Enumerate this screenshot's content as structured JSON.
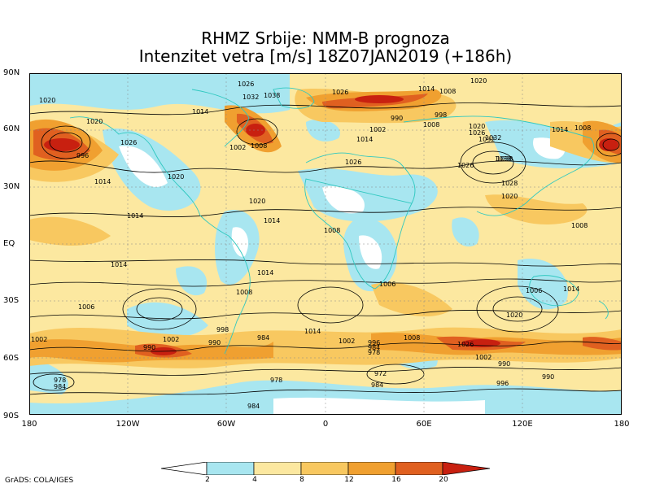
{
  "title_line1": "RHMZ Srbije: NMM-B prognoza",
  "title_line2": "Intenzitet vetra [m/s] 18Z07JAN2019 (+186h)",
  "lat_labels": [
    "90N",
    "60N",
    "30N",
    "EQ",
    "30S",
    "60S",
    "90S"
  ],
  "lon_labels": [
    "180",
    "120W",
    "60W",
    "0",
    "60E",
    "120E",
    "180"
  ],
  "colorbar": {
    "labels": [
      "2",
      "4",
      "8",
      "12",
      "16",
      "20"
    ],
    "colors": [
      "#ffffff",
      "#a8e6f0",
      "#fce8a0",
      "#f8c860",
      "#f0a030",
      "#e06020",
      "#c82010",
      "#a01008"
    ]
  },
  "credit": "GrADS: COLA/IGES",
  "isobar_labels": [
    {
      "text": "1020"
    },
    {
      "text": "1026"
    },
    {
      "text": "1032"
    },
    {
      "text": "1038"
    },
    {
      "text": "1026"
    },
    {
      "text": "1014"
    },
    {
      "text": "1008"
    },
    {
      "text": "1020"
    },
    {
      "text": "1020"
    },
    {
      "text": "1014"
    },
    {
      "text": "1026"
    },
    {
      "text": "996"
    },
    {
      "text": "1002"
    },
    {
      "text": "1008"
    },
    {
      "text": "1014"
    },
    {
      "text": "990"
    },
    {
      "text": "998"
    },
    {
      "text": "1002"
    },
    {
      "text": "1008"
    },
    {
      "text": "1014"
    },
    {
      "text": "1020"
    },
    {
      "text": "1026"
    },
    {
      "text": "1032"
    },
    {
      "text": "1038"
    },
    {
      "text": "1008"
    },
    {
      "text": "1014"
    },
    {
      "text": "1020"
    },
    {
      "text": "1026"
    },
    {
      "text": "1020"
    },
    {
      "text": "1014"
    },
    {
      "text": "1008"
    },
    {
      "text": "1014"
    },
    {
      "text": "1020"
    },
    {
      "text": "1008"
    },
    {
      "text": "1014"
    },
    {
      "text": "1006"
    },
    {
      "text": "1014"
    },
    {
      "text": "1006"
    },
    {
      "text": "1002"
    },
    {
      "text": "1008"
    },
    {
      "text": "998"
    },
    {
      "text": "984"
    },
    {
      "text": "1014"
    },
    {
      "text": "1002"
    },
    {
      "text": "978"
    },
    {
      "text": "1008"
    },
    {
      "text": "1026"
    },
    {
      "text": "1002"
    },
    {
      "text": "990"
    },
    {
      "text": "996"
    },
    {
      "text": "984"
    },
    {
      "text": "1002"
    },
    {
      "text": "990"
    },
    {
      "text": "978"
    },
    {
      "text": "972"
    },
    {
      "text": "984"
    },
    {
      "text": "990"
    },
    {
      "text": "996"
    },
    {
      "text": "990"
    },
    {
      "text": "984"
    },
    {
      "text": "978"
    },
    {
      "text": "984"
    },
    {
      "text": "1020"
    },
    {
      "text": "1006"
    },
    {
      "text": "1014"
    },
    {
      "text": "1026"
    },
    {
      "text": "1028"
    },
    {
      "text": "1032"
    },
    {
      "text": "1038"
    }
  ]
}
